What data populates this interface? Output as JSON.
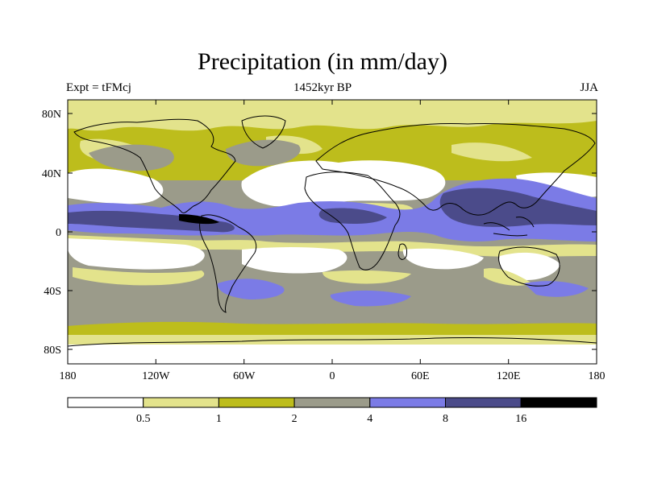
{
  "title": "Precipitation (in mm/day)",
  "subtitle_left": "Expt = tFMcj",
  "subtitle_center": "1452kyr BP",
  "subtitle_right": "JJA",
  "map": {
    "projection": "cylindrical equidistant",
    "lon_range": [
      -180,
      180
    ],
    "lat_range": [
      -90,
      90
    ],
    "x_ticks": [
      "180",
      "120W",
      "60W",
      "0",
      "60E",
      "120E",
      "180"
    ],
    "y_ticks": [
      "80N",
      "40N",
      "0",
      "40S",
      "80S"
    ],
    "colors": {
      "lt05": "#ffffff",
      "c05_1": "#e3e38c",
      "c1_2": "#bdbd1c",
      "c2_4": "#9b9b8a",
      "c4_8": "#7b7be6",
      "c8_16": "#4b4b8a",
      "gt16": "#000000",
      "coast": "#000000"
    }
  },
  "colorbar": {
    "levels": [
      "0.5",
      "1",
      "2",
      "4",
      "8",
      "16"
    ],
    "colors": [
      "#ffffff",
      "#e3e38c",
      "#bdbd1c",
      "#9b9b8a",
      "#7b7be6",
      "#4b4b8a",
      "#000000"
    ]
  }
}
